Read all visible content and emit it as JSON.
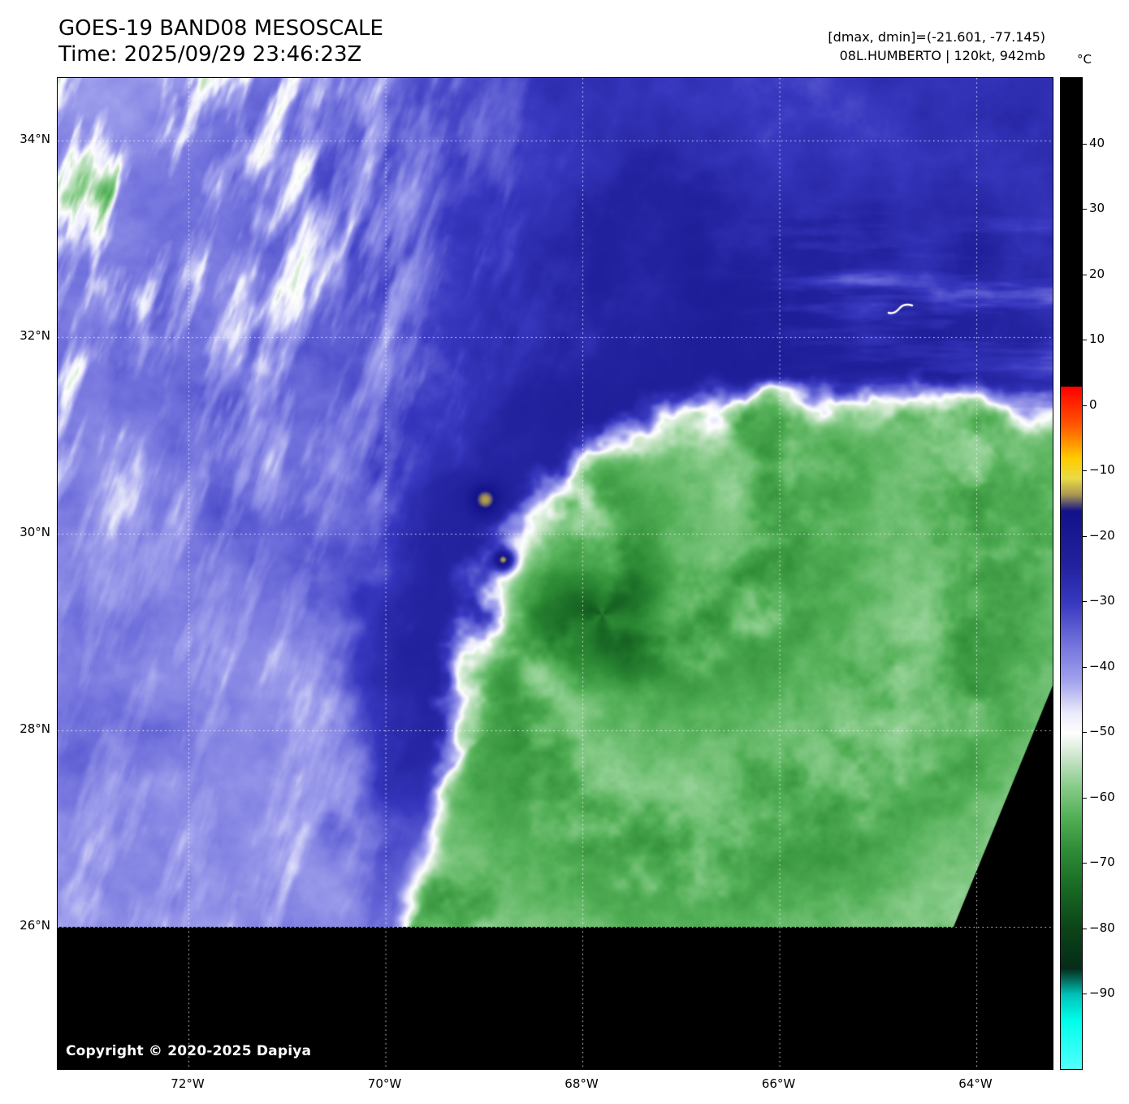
{
  "header": {
    "title": "GOES-19 BAND08 MESOSCALE",
    "time": "Time: 2025/09/29 23:46:23Z",
    "dmax_dmin": "[dmax, dmin]=(-21.601, -77.145)",
    "storm_info": "08L.HUMBERTO | 120kt, 942mb"
  },
  "map": {
    "copyright": "Copyright © 2020-2025 Dapiya",
    "lat_ticks": [
      {
        "label": "34°N",
        "value": 34
      },
      {
        "label": "32°N",
        "value": 32
      },
      {
        "label": "30°N",
        "value": 30
      },
      {
        "label": "28°N",
        "value": 28
      },
      {
        "label": "26°N",
        "value": 26
      }
    ],
    "lon_ticks": [
      {
        "label": "72°W",
        "value": 72
      },
      {
        "label": "70°W",
        "value": 70
      },
      {
        "label": "68°W",
        "value": 68
      },
      {
        "label": "66°W",
        "value": 66
      },
      {
        "label": "64°W",
        "value": 64
      }
    ]
  },
  "colorbar": {
    "unit": "°C",
    "ticks": [
      {
        "label": "40",
        "value": 40
      },
      {
        "label": "30",
        "value": 30
      },
      {
        "label": "20",
        "value": 20
      },
      {
        "label": "10",
        "value": 10
      },
      {
        "label": "0",
        "value": 0
      },
      {
        "label": "−10",
        "value": -10
      },
      {
        "label": "−20",
        "value": -20
      },
      {
        "label": "−30",
        "value": -30
      },
      {
        "label": "−40",
        "value": -40
      },
      {
        "label": "−50",
        "value": -50
      },
      {
        "label": "−60",
        "value": -60
      },
      {
        "label": "−70",
        "value": -70
      },
      {
        "label": "−80",
        "value": -80
      },
      {
        "label": "−90",
        "value": -90
      }
    ],
    "palette": [
      [
        50,
        "#000000"
      ],
      [
        3,
        "#000000"
      ],
      [
        2.99,
        "#ff0000"
      ],
      [
        -3,
        "#ff5a00"
      ],
      [
        -8,
        "#ffcd00"
      ],
      [
        -11,
        "#ebdc46"
      ],
      [
        -13.5,
        "#ac9852"
      ],
      [
        -16,
        "#12128a"
      ],
      [
        -24,
        "#22229e"
      ],
      [
        -30,
        "#3838c0"
      ],
      [
        -36,
        "#7070dc"
      ],
      [
        -42,
        "#a3a3ee"
      ],
      [
        -47,
        "#ededfc"
      ],
      [
        -50,
        "#ffffff"
      ],
      [
        -54,
        "#c6e4c6"
      ],
      [
        -58,
        "#8acd8c"
      ],
      [
        -63,
        "#52af56"
      ],
      [
        -68,
        "#2e8c36"
      ],
      [
        -74,
        "#186824"
      ],
      [
        -80,
        "#0c4418"
      ],
      [
        -86,
        "#062c1a"
      ],
      [
        -90,
        "#00c4ba"
      ],
      [
        -94,
        "#00ffeb"
      ],
      [
        -102,
        "#5affff"
      ]
    ]
  }
}
